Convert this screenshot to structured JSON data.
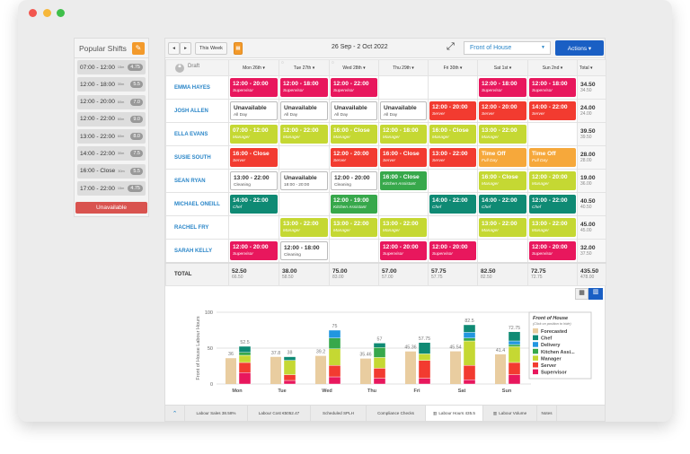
{
  "colors": {
    "Supervisor": "#e8175d",
    "Server": "#f23b30",
    "Manager": "#c5d833",
    "Kitchen Assistant": "#37a84b",
    "Chef": "#0f8a74",
    "Time Off": "#f6a83b",
    "Delivery": "#2196e0",
    "Forecasted": "#e9cda0"
  },
  "sidebar": {
    "title": "Popular Shifts",
    "unavailable_label": "Unavailable",
    "shifts": [
      {
        "time": "07:00 - 12:00",
        "break": "15m",
        "hours": "4.75"
      },
      {
        "time": "12:00 - 18:00",
        "break": "30m",
        "hours": "5.5"
      },
      {
        "time": "12:00 - 20:00",
        "break": "60m",
        "hours": "7.0"
      },
      {
        "time": "12:00 - 22:00",
        "break": "60m",
        "hours": "9.0"
      },
      {
        "time": "13:00 - 22:00",
        "break": "60m",
        "hours": "8.0"
      },
      {
        "time": "14:00 - 22:00",
        "break": "30m",
        "hours": "7.5"
      },
      {
        "time": "16:00 - Close",
        "break": "30m",
        "hours": "5.5"
      },
      {
        "time": "17:00 - 22:00",
        "break": "15m",
        "hours": "4.75"
      }
    ]
  },
  "header": {
    "this_week": "This Week",
    "date_range": "26 Sep - 2 Oct 2022",
    "location": "Front of House",
    "actions": "Actions ▾"
  },
  "columns": {
    "draft": "Draft",
    "days": [
      "Mon 26th ▾",
      "Tue 27th ▾",
      "Wed 28th ▾",
      "Thu 29th ▾",
      "Fri 30th ▾",
      "Sat 1st ▾",
      "Sun 2nd ▾"
    ],
    "total": "Total ▾"
  },
  "rows": [
    {
      "name": "EMMA HAYES",
      "total": "34.50",
      "sub": "34.50",
      "cells": [
        {
          "t": "12:00 - 20:00",
          "s": "Supervisor",
          "c": "Supervisor"
        },
        {
          "t": "12:00 - 18:00",
          "s": "Supervisor",
          "c": "Supervisor"
        },
        {
          "t": "12:00 - 22:00",
          "s": "Supervisor",
          "c": "Supervisor"
        },
        null,
        null,
        {
          "t": "12:00 - 18:00",
          "s": "Supervisor",
          "c": "Supervisor"
        },
        {
          "t": "12:00 - 18:00",
          "s": "Supervisor",
          "c": "Supervisor"
        }
      ]
    },
    {
      "name": "JOSH ALLEN",
      "total": "24.00",
      "sub": "24.00",
      "cells": [
        {
          "t": "Unavailable",
          "s": "All Day",
          "c": "white"
        },
        {
          "t": "Unavailable",
          "s": "All Day",
          "c": "white"
        },
        {
          "t": "Unavailable",
          "s": "All Day",
          "c": "white"
        },
        {
          "t": "Unavailable",
          "s": "All Day",
          "c": "white"
        },
        {
          "t": "12:00 - 20:00",
          "s": "Server",
          "c": "Server"
        },
        {
          "t": "12:00 - 20:00",
          "s": "Server",
          "c": "Server"
        },
        {
          "t": "14:00 - 22:00",
          "s": "Server",
          "c": "Server"
        }
      ]
    },
    {
      "name": "ELLA EVANS",
      "total": "39.50",
      "sub": "39.50",
      "cells": [
        {
          "t": "07:00 - 12:00",
          "s": "Manager",
          "c": "Manager"
        },
        {
          "t": "12:00 - 22:00",
          "s": "Manager",
          "c": "Manager"
        },
        {
          "t": "16:00 - Close",
          "s": "Manager",
          "c": "Manager"
        },
        {
          "t": "12:00 - 18:00",
          "s": "Manager",
          "c": "Manager"
        },
        {
          "t": "16:00 - Close",
          "s": "Manager",
          "c": "Manager"
        },
        {
          "t": "13:00 - 22:00",
          "s": "Manager",
          "c": "Manager"
        },
        null
      ]
    },
    {
      "name": "SUSIE SOUTH",
      "total": "28.00",
      "sub": "28.00",
      "cells": [
        {
          "t": "16:00 - Close",
          "s": "Server",
          "c": "Server"
        },
        null,
        {
          "t": "12:00 - 20:00",
          "s": "Server",
          "c": "Server"
        },
        {
          "t": "16:00 - Close",
          "s": "Server",
          "c": "Server"
        },
        {
          "t": "13:00 - 22:00",
          "s": "Server",
          "c": "Server"
        },
        {
          "t": "Time Off",
          "s": "Full Day",
          "c": "Time Off"
        },
        {
          "t": "Time Off",
          "s": "Full Day",
          "c": "Time Off"
        }
      ]
    },
    {
      "name": "SEAN RYAN",
      "total": "19.00",
      "sub": "36.00",
      "cells": [
        {
          "t": "13:00 - 22:00",
          "s": "Cleaning",
          "c": "white"
        },
        {
          "t": "Unavailable",
          "s": "18:00 - 20:00",
          "c": "white"
        },
        {
          "t": "12:00 - 20:00",
          "s": "Cleaning",
          "c": "white"
        },
        {
          "t": "16:00 - Close",
          "s": "Kitchen Assistant",
          "c": "Kitchen Assistant"
        },
        null,
        {
          "t": "16:00 - Close",
          "s": "Manager",
          "c": "Manager"
        },
        {
          "t": "12:00 - 20:00",
          "s": "Manager",
          "c": "Manager"
        }
      ]
    },
    {
      "name": "MICHAEL ONEILL",
      "total": "40.50",
      "sub": "40.50",
      "cells": [
        {
          "t": "14:00 - 22:00",
          "s": "Chef",
          "c": "Chef"
        },
        null,
        {
          "t": "12:00 - 19:00",
          "s": "Kitchen Assistant",
          "c": "Kitchen Assistant"
        },
        null,
        {
          "t": "14:00 - 22:00",
          "s": "Chef",
          "c": "Chef"
        },
        {
          "t": "14:00 - 22:00",
          "s": "Chef",
          "c": "Chef"
        },
        {
          "t": "12:00 - 22:00",
          "s": "Chef",
          "c": "Chef"
        }
      ]
    },
    {
      "name": "RACHEL FRY",
      "total": "45.00",
      "sub": "45.00",
      "cells": [
        null,
        {
          "t": "13:00 - 22:00",
          "s": "Manager",
          "c": "Manager"
        },
        {
          "t": "13:00 - 22:00",
          "s": "Manager",
          "c": "Manager"
        },
        {
          "t": "13:00 - 22:00",
          "s": "Manager",
          "c": "Manager"
        },
        null,
        {
          "t": "13:00 - 22:00",
          "s": "Manager",
          "c": "Manager"
        },
        {
          "t": "13:00 - 22:00",
          "s": "Manager",
          "c": "Manager"
        }
      ]
    },
    {
      "name": "SARAH KELLY",
      "total": "32.00",
      "sub": "37.50",
      "cells": [
        {
          "t": "12:00 - 20:00",
          "s": "Supervisor",
          "c": "Supervisor"
        },
        {
          "t": "12:00 - 18:00",
          "s": "Cleaning",
          "c": "white"
        },
        null,
        {
          "t": "12:00 - 20:00",
          "s": "Supervisor",
          "c": "Supervisor"
        },
        {
          "t": "12:00 - 20:00",
          "s": "Supervisor",
          "c": "Supervisor"
        },
        null,
        {
          "t": "12:00 - 20:00",
          "s": "Supervisor",
          "c": "Supervisor"
        }
      ]
    }
  ],
  "totals": {
    "label": "TOTAL",
    "days": [
      [
        "52.50",
        "66.50"
      ],
      [
        "38.00",
        "58.50"
      ],
      [
        "75.00",
        "83.00"
      ],
      [
        "57.00",
        "57.00"
      ],
      [
        "57.75",
        "57.75"
      ],
      [
        "82.50",
        "82.50"
      ],
      [
        "72.75",
        "72.75"
      ]
    ],
    "grand": [
      "435.50",
      "478.00"
    ]
  },
  "chart_data": {
    "type": "bar",
    "ylabel": "Front of House Labour Hours",
    "ylim": [
      0,
      100
    ],
    "yticks": [
      0,
      50,
      100
    ],
    "categories": [
      "Mon",
      "Tue",
      "Wed",
      "Thu",
      "Fri",
      "Sat",
      "Sun"
    ],
    "forecast": {
      "name": "Forecasted",
      "values": [
        36,
        37.8,
        39.2,
        35.46,
        45.36,
        45.54,
        41.4
      ],
      "labels": [
        "36",
        "37.8",
        "39.2",
        "35.46",
        "45.36",
        "45.54",
        "41.4"
      ]
    },
    "stack_totals": [
      "52.5",
      "38",
      "75",
      "57",
      "57.75",
      "82.5",
      "72.75"
    ],
    "series": [
      {
        "name": "Supervisor",
        "values": [
          16,
          5,
          10,
          8,
          8,
          6,
          13
        ]
      },
      {
        "name": "Server",
        "values": [
          14,
          8,
          16,
          14,
          25,
          20,
          17
        ]
      },
      {
        "name": "Manager",
        "values": [
          10,
          20,
          23,
          15,
          9,
          34,
          22
        ]
      },
      {
        "name": "Kitchen Assistant",
        "values": [
          4,
          0,
          15,
          14,
          0,
          4,
          3
        ]
      },
      {
        "name": "Delivery",
        "values": [
          0,
          0,
          11,
          0,
          0,
          8,
          5
        ]
      },
      {
        "name": "Chef",
        "values": [
          8.5,
          5,
          0,
          6,
          15.75,
          10.5,
          12.75
        ]
      }
    ],
    "legend": {
      "title": "Front of House",
      "subtitle": "(Click on position to hide)",
      "items": [
        "Forecasted",
        "Chef",
        "Delivery",
        "Kitchen Assi...",
        "Manager",
        "Server",
        "Supervisor"
      ],
      "placement": "right"
    }
  },
  "bottom_tabs": [
    "Labour Sales 38.58%",
    "Labour Cost €5052.47",
    "Scheduled SPLH",
    "Compliance Checks",
    "Labour Hours 435.5",
    "Labour Volume",
    "Notes"
  ]
}
